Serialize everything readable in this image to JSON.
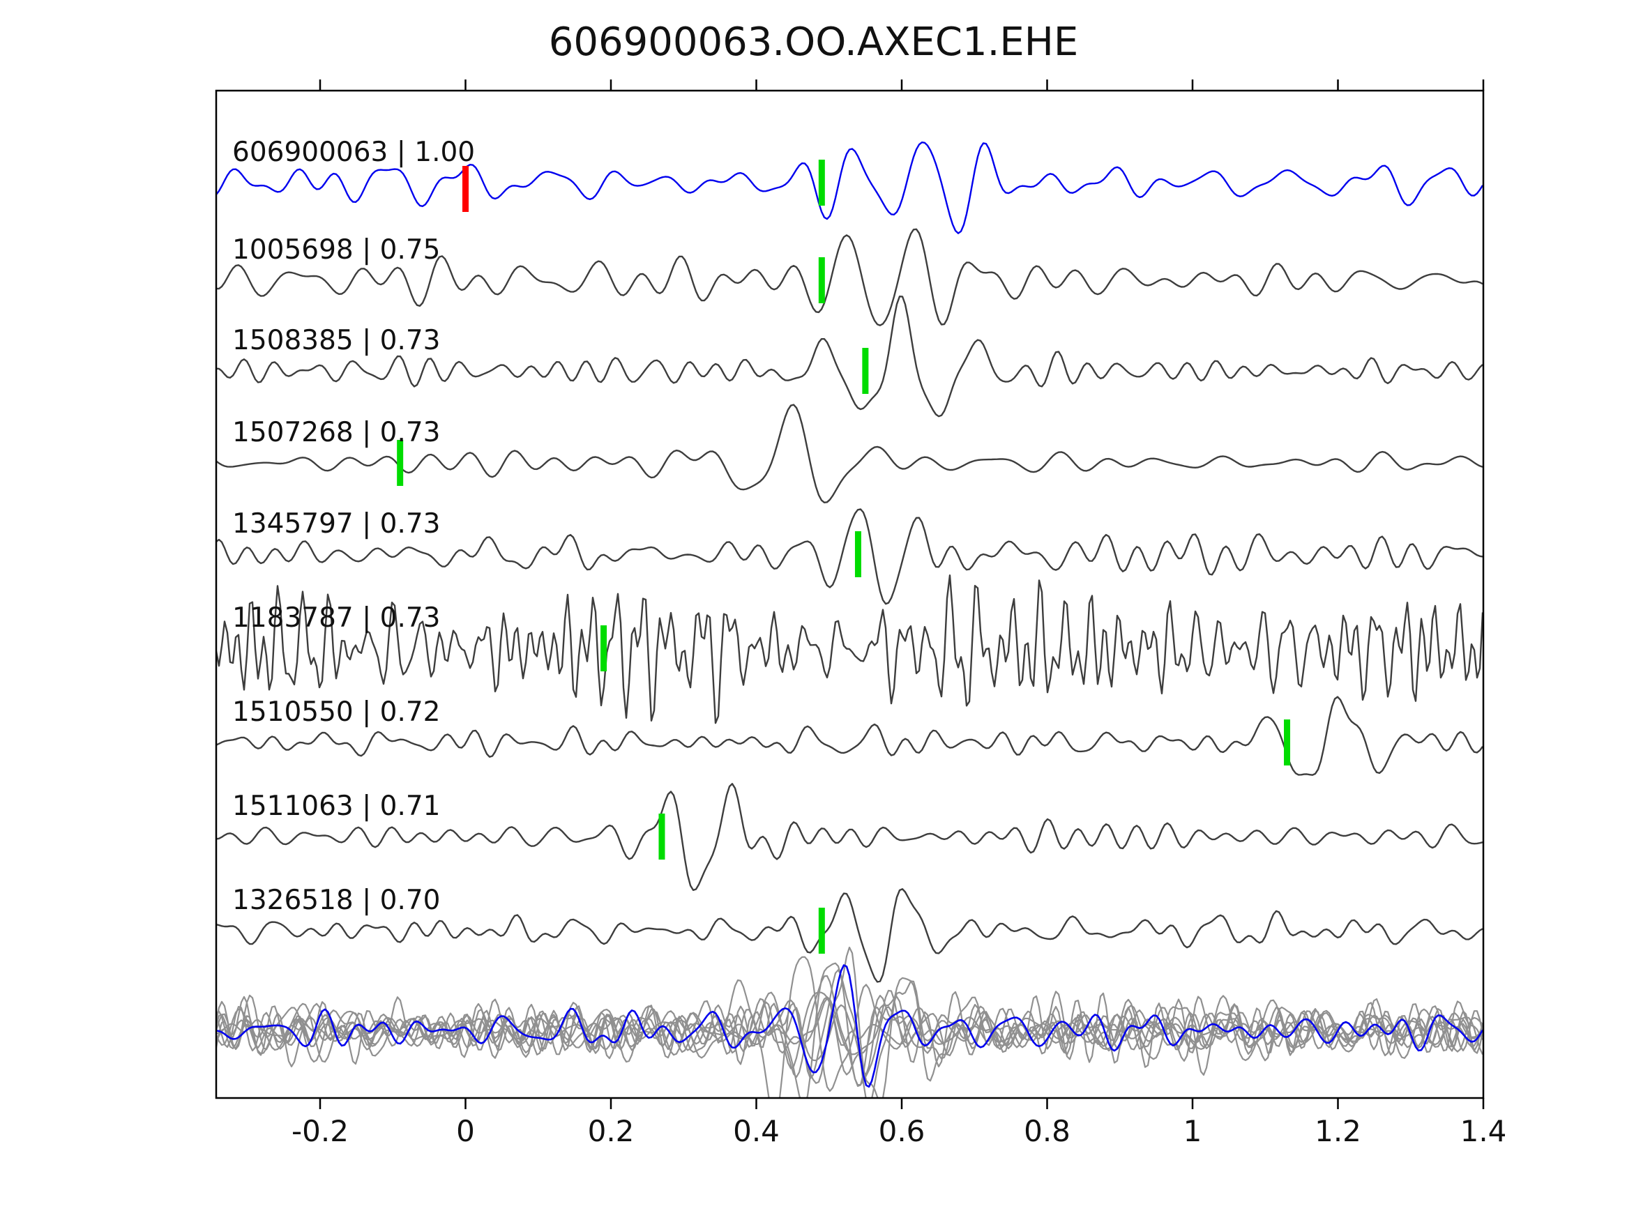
{
  "title": "606900063.OO.AXEC1.EHE",
  "colors": {
    "template_trace": "#0000ee",
    "detection_trace": "#3d3d3d",
    "overlay_gray": "#909090",
    "pick_marker": "#00dc00",
    "template_marker": "#ff0000",
    "axis": "#000000",
    "text": "#111111"
  },
  "x_axis": {
    "range": [
      -0.343,
      1.4
    ],
    "ticks": [
      -0.2,
      0,
      0.2,
      0.4,
      0.6,
      0.8,
      1,
      1.2,
      1.4
    ],
    "tick_labels": [
      "-0.2",
      "0",
      "0.2",
      "0.4",
      "0.6",
      "0.8",
      "1",
      "1.2",
      "1.4"
    ]
  },
  "chart_data": {
    "type": "line",
    "title": "606900063.OO.AXEC1.EHE",
    "xlabel": "",
    "ylabel": "",
    "xlim": [
      -0.343,
      1.4
    ],
    "legend": "none",
    "grid": false,
    "traces": [
      {
        "label": "606900063 | 1.00",
        "id": "606900063",
        "correlation": 1.0,
        "color": "blue",
        "pick_x": 0.49,
        "pick_color": "green",
        "extra_marker": {
          "x": 0.0,
          "color": "red"
        }
      },
      {
        "label": "1005698 | 0.75",
        "id": "1005698",
        "correlation": 0.75,
        "color": "dark-gray",
        "pick_x": 0.49,
        "pick_color": "green"
      },
      {
        "label": "1508385 | 0.73",
        "id": "1508385",
        "correlation": 0.73,
        "color": "dark-gray",
        "pick_x": 0.55,
        "pick_color": "green"
      },
      {
        "label": "1507268 | 0.73",
        "id": "1507268",
        "correlation": 0.73,
        "color": "dark-gray",
        "pick_x": -0.09,
        "pick_color": "green"
      },
      {
        "label": "1345797 | 0.73",
        "id": "1345797",
        "correlation": 0.73,
        "color": "dark-gray",
        "pick_x": 0.54,
        "pick_color": "green"
      },
      {
        "label": "1183787 | 0.73",
        "id": "1183787",
        "correlation": 0.73,
        "color": "dark-gray",
        "pick_x": 0.19,
        "pick_color": "green"
      },
      {
        "label": "1510550 | 0.72",
        "id": "1510550",
        "correlation": 0.72,
        "color": "dark-gray",
        "pick_x": 1.13,
        "pick_color": "green"
      },
      {
        "label": "1511063 | 0.71",
        "id": "1511063",
        "correlation": 0.71,
        "color": "dark-gray",
        "pick_x": 0.27,
        "pick_color": "green"
      },
      {
        "label": "1326518 | 0.70",
        "id": "1326518",
        "correlation": 0.7,
        "color": "dark-gray",
        "pick_x": 0.49,
        "pick_color": "green"
      }
    ],
    "overlay_stack": {
      "present": true,
      "colors": [
        "gray",
        "blue"
      ],
      "position": "bottom"
    }
  }
}
